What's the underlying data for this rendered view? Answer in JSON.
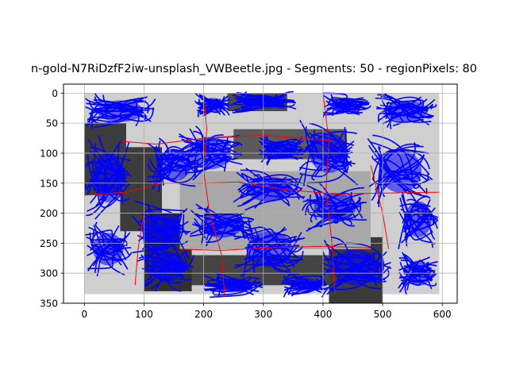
{
  "chart_data": {
    "type": "heatmap",
    "title": "n-gold-N7RiDzfF2iw-unsplash_VWBeetle.jpg - Segments: 50 - regionPixels: 80",
    "xlabel": "",
    "ylabel": "",
    "xlim": [
      -35,
      625
    ],
    "ylim": [
      350,
      -15
    ],
    "y_inverted": true,
    "grid": true,
    "x_ticks": [
      0,
      100,
      200,
      300,
      400,
      500,
      600
    ],
    "y_ticks": [
      0,
      50,
      100,
      150,
      200,
      250,
      300,
      350
    ],
    "image_extent": {
      "x": [
        0,
        595
      ],
      "y": [
        0,
        335
      ]
    },
    "overlay_colors": {
      "segments": "#ff0000",
      "streamlines": "#0000ff"
    },
    "gray_regions": [
      {
        "x": [
          0,
          595
        ],
        "y": [
          0,
          335
        ],
        "shade": "#cfcfcf"
      },
      {
        "x": [
          240,
          340
        ],
        "y": [
          0,
          30
        ],
        "shade": "#4a4a4a"
      },
      {
        "x": [
          0,
          70
        ],
        "y": [
          50,
          170
        ],
        "shade": "#3c3c3c"
      },
      {
        "x": [
          60,
          130
        ],
        "y": [
          90,
          230
        ],
        "shade": "#3c3c3c"
      },
      {
        "x": [
          250,
          440
        ],
        "y": [
          60,
          110
        ],
        "shade": "#5a5a5a"
      },
      {
        "x": [
          160,
          420
        ],
        "y": [
          270,
          320
        ],
        "shade": "#444444"
      },
      {
        "x": [
          410,
          500
        ],
        "y": [
          240,
          350
        ],
        "shade": "#3a3a3a"
      },
      {
        "x": [
          100,
          180
        ],
        "y": [
          200,
          330
        ],
        "shade": "#303030"
      },
      {
        "x": [
          160,
          480
        ],
        "y": [
          130,
          260
        ],
        "shade": "#a8a8a8"
      }
    ],
    "streamline_clusters": [
      {
        "cx": 60,
        "cy": 30,
        "w": 120,
        "h": 60
      },
      {
        "cx": 215,
        "cy": 20,
        "w": 60,
        "h": 40
      },
      {
        "cx": 300,
        "cy": 15,
        "w": 110,
        "h": 35
      },
      {
        "cx": 440,
        "cy": 20,
        "w": 80,
        "h": 40
      },
      {
        "cx": 540,
        "cy": 30,
        "w": 110,
        "h": 60
      },
      {
        "cx": 210,
        "cy": 100,
        "w": 110,
        "h": 90
      },
      {
        "cx": 40,
        "cy": 140,
        "w": 80,
        "h": 140
      },
      {
        "cx": 150,
        "cy": 120,
        "w": 90,
        "h": 90
      },
      {
        "cx": 330,
        "cy": 95,
        "w": 80,
        "h": 50
      },
      {
        "cx": 410,
        "cy": 100,
        "w": 100,
        "h": 110
      },
      {
        "cx": 530,
        "cy": 130,
        "w": 110,
        "h": 120
      },
      {
        "cx": 310,
        "cy": 160,
        "w": 120,
        "h": 70
      },
      {
        "cx": 420,
        "cy": 190,
        "w": 110,
        "h": 80
      },
      {
        "cx": 560,
        "cy": 210,
        "w": 70,
        "h": 100
      },
      {
        "cx": 230,
        "cy": 220,
        "w": 110,
        "h": 70
      },
      {
        "cx": 130,
        "cy": 230,
        "w": 100,
        "h": 100
      },
      {
        "cx": 40,
        "cy": 260,
        "w": 80,
        "h": 90
      },
      {
        "cx": 310,
        "cy": 260,
        "w": 120,
        "h": 100
      },
      {
        "cx": 455,
        "cy": 290,
        "w": 120,
        "h": 100
      },
      {
        "cx": 560,
        "cy": 300,
        "w": 70,
        "h": 70
      },
      {
        "cx": 140,
        "cy": 290,
        "w": 90,
        "h": 80
      },
      {
        "cx": 250,
        "cy": 320,
        "w": 100,
        "h": 40
      },
      {
        "cx": 370,
        "cy": 320,
        "w": 80,
        "h": 40
      }
    ]
  }
}
